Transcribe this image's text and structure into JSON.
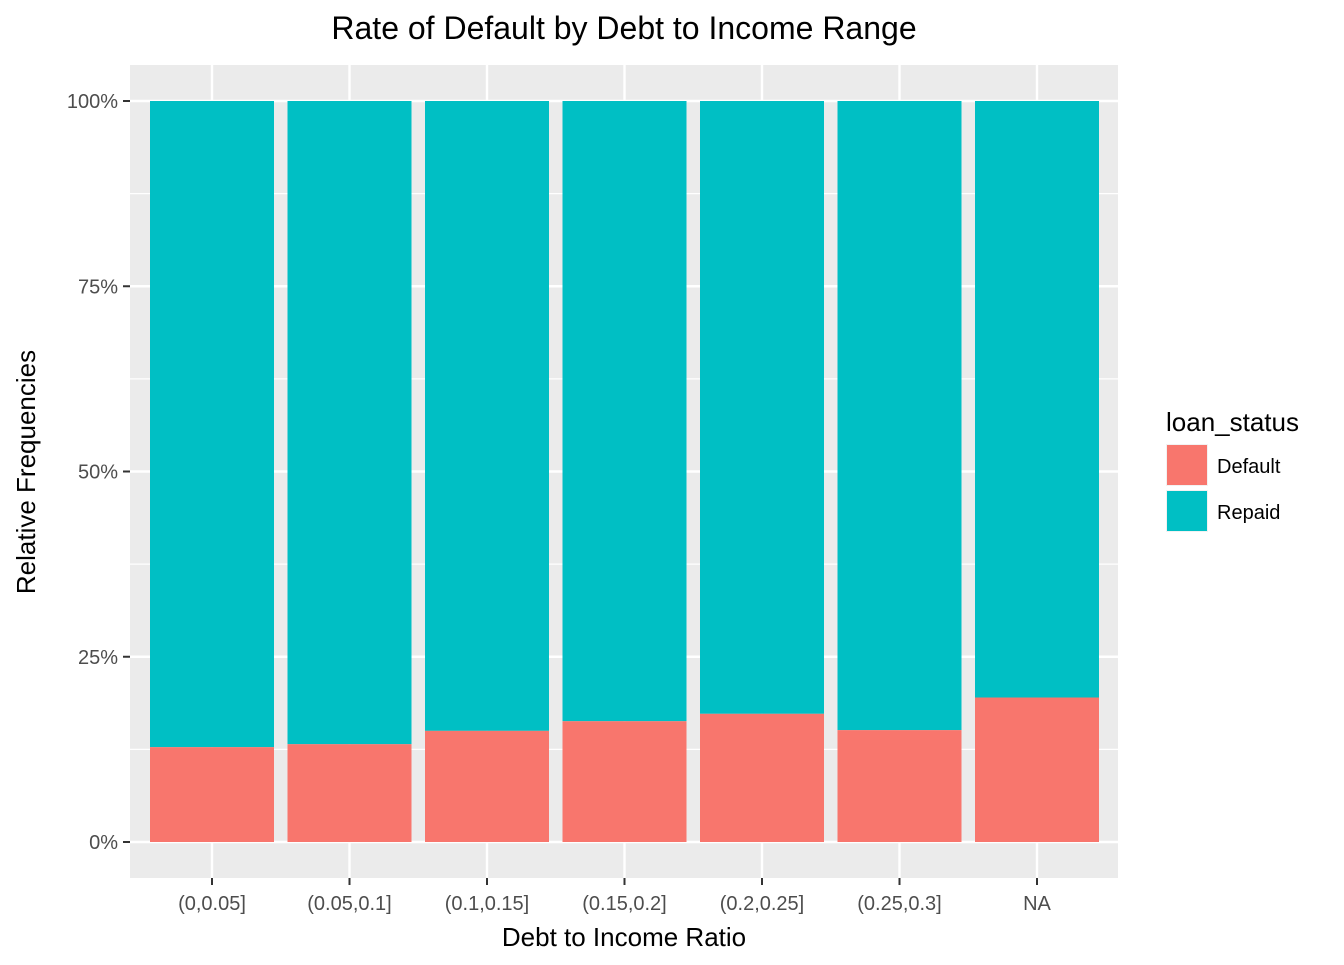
{
  "chart_data": {
    "type": "bar",
    "stacked": true,
    "title": "Rate of Default by Debt to Income Range",
    "xlabel": "Debt to Income Ratio",
    "ylabel": "Relative Frequencies",
    "ylim": [
      0,
      1
    ],
    "y_ticks": [
      "0%",
      "25%",
      "50%",
      "75%",
      "100%"
    ],
    "y_tick_values": [
      0,
      0.25,
      0.5,
      0.75,
      1
    ],
    "categories": [
      "(0,0.05]",
      "(0.05,0.1]",
      "(0.1,0.15]",
      "(0.15,0.2]",
      "(0.2,0.25]",
      "(0.25,0.3]",
      "NA"
    ],
    "series": [
      {
        "name": "Default",
        "color": "#F8766D",
        "values": [
          0.128,
          0.132,
          0.15,
          0.163,
          0.173,
          0.151,
          0.195
        ]
      },
      {
        "name": "Repaid",
        "color": "#00BFC4",
        "values": [
          0.872,
          0.868,
          0.85,
          0.837,
          0.827,
          0.849,
          0.805
        ]
      }
    ],
    "legend": {
      "title": "loan_status",
      "position": "right"
    },
    "grid": true
  }
}
